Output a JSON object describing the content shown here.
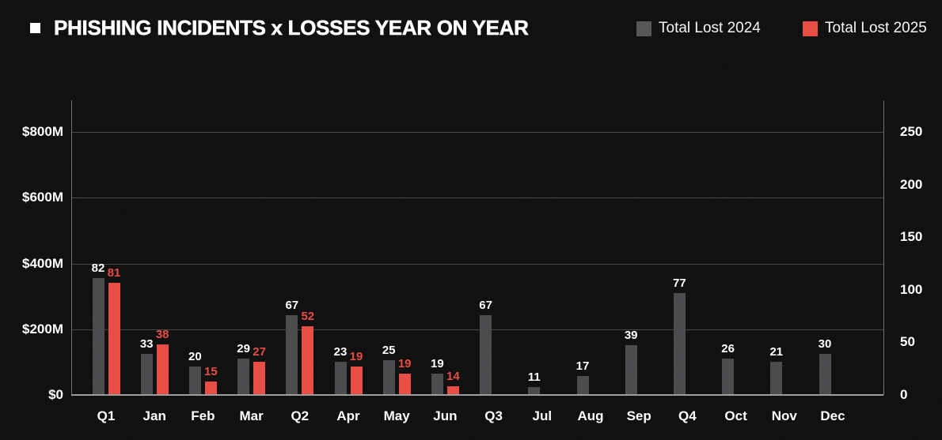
{
  "header": {
    "title": "PHISHING INCIDENTS x LOSSES YEAR ON YEAR"
  },
  "legend": {
    "items": [
      {
        "label": "Total Lost 2024",
        "color": "#525255"
      },
      {
        "label": "Total Lost 2025",
        "color": "#e8493f"
      }
    ]
  },
  "colors": {
    "background": "#0a0a0a",
    "gridline": "#454545",
    "axis_line": "#6d6d6d",
    "baseline": "#9a9a9a",
    "text": "#ffffff",
    "bar_2024": "#47474a",
    "bar_2025": "#e8493f",
    "label_2024": "#ffffff",
    "label_2025": "#e8493f"
  },
  "chart_data": {
    "type": "bar",
    "title": "PHISHING INCIDENTS x LOSSES YEAR ON YEAR",
    "categories": [
      "Q1",
      "Jan",
      "Feb",
      "Mar",
      "Q2",
      "Apr",
      "May",
      "Jun",
      "Q3",
      "Jul",
      "Aug",
      "Sep",
      "Q4",
      "Oct",
      "Nov",
      "Dec"
    ],
    "left_axis": {
      "ticks": [
        "$0",
        "$200M",
        "$400M",
        "$600M",
        "$800M"
      ],
      "tick_values": [
        0,
        200,
        400,
        600,
        800
      ],
      "range": [
        0,
        800
      ]
    },
    "right_axis": {
      "ticks": [
        "0",
        "50",
        "100",
        "150",
        "200",
        "250"
      ],
      "tick_values": [
        0,
        50,
        100,
        150,
        200,
        250
      ],
      "range": [
        0,
        250
      ]
    },
    "grid": "horizontal",
    "legend_position": "top-right",
    "series": [
      {
        "name": "Total Lost 2024",
        "color": "#47474a",
        "label_color": "#ffffff",
        "lost_usd_millions_est": [
          356,
          126,
          86,
          110,
          243,
          101,
          106,
          65,
          243,
          24,
          58,
          151,
          310,
          110,
          101,
          125
        ],
        "incident_count_labels": [
          82,
          33,
          20,
          29,
          67,
          23,
          25,
          19,
          67,
          11,
          17,
          39,
          77,
          26,
          21,
          30
        ]
      },
      {
        "name": "Total Lost 2025",
        "color": "#e8493f",
        "label_color": "#e8493f",
        "lost_usd_millions_est": [
          341,
          154,
          41,
          101,
          209,
          86,
          65,
          26,
          null,
          null,
          null,
          null,
          null,
          null,
          null,
          null
        ],
        "incident_count_labels": [
          81,
          38,
          15,
          27,
          52,
          19,
          19,
          14,
          null,
          null,
          null,
          null,
          null,
          null,
          null,
          null
        ]
      }
    ]
  }
}
